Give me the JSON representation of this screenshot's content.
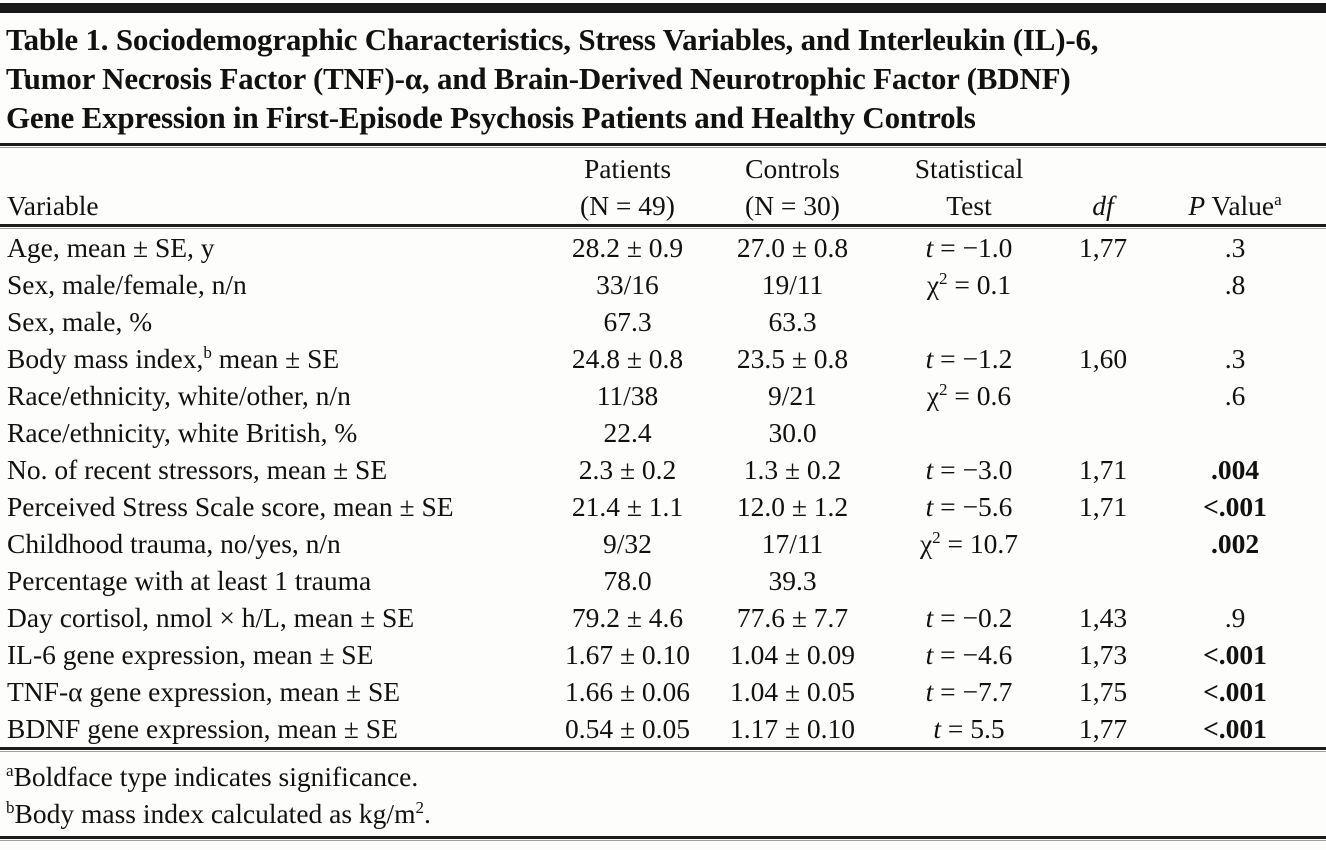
{
  "colors": {
    "ink": "#111111",
    "rule": "#1c1c1c",
    "background": "#fdfdfc"
  },
  "title_lines": [
    "Table 1. Sociodemographic Characteristics, Stress Variables, and Interleukin (IL)-6,",
    "Tumor Necrosis Factor (TNF)-α, and Brain-Derived Neurotrophic Factor (BDNF)",
    "Gene Expression in First-Episode Psychosis Patients and Healthy Controls"
  ],
  "table": {
    "header": {
      "row1": [
        "",
        "Patients",
        "Controls",
        "Statistical",
        "",
        ""
      ],
      "row2": [
        "Variable",
        "(N = 49)",
        "(N = 30)",
        "Test",
        "[i]df[/i]",
        "[i]P[/i] Value[sup]a[/sup]"
      ]
    },
    "rows": [
      {
        "variable": "Age, mean ± SE, y",
        "patients": "28.2 ± 0.9",
        "controls": "27.0 ± 0.8",
        "test": "[i]t[/i] = −1.0",
        "df": "1,77",
        "p": ".3",
        "significant": false
      },
      {
        "variable": "Sex, male/female, n/n",
        "patients": "33/16",
        "controls": "19/11",
        "test": "χ[sup]2[/sup] = 0.1",
        "df": "",
        "p": ".8",
        "significant": false
      },
      {
        "variable": "Sex, male, %",
        "patients": "67.3",
        "controls": "63.3",
        "test": "",
        "df": "",
        "p": "",
        "significant": false
      },
      {
        "variable": "Body mass index,[sup]b[/sup] mean ± SE",
        "patients": "24.8 ± 0.8",
        "controls": "23.5 ± 0.8",
        "test": "[i]t[/i] = −1.2",
        "df": "1,60",
        "p": ".3",
        "significant": false
      },
      {
        "variable": "Race/ethnicity, white/other, n/n",
        "patients": "11/38",
        "controls": "9/21",
        "test": "χ[sup]2[/sup] = 0.6",
        "df": "",
        "p": ".6",
        "significant": false
      },
      {
        "variable": "Race/ethnicity, white British, %",
        "patients": "22.4",
        "controls": "30.0",
        "test": "",
        "df": "",
        "p": "",
        "significant": false
      },
      {
        "variable": "No. of recent stressors, mean ± SE",
        "patients": "2.3 ± 0.2",
        "controls": "1.3 ± 0.2",
        "test": "[i]t[/i] = −3.0",
        "df": "1,71",
        "p": ".004",
        "significant": true
      },
      {
        "variable": "Perceived Stress Scale score, mean ± SE",
        "patients": "21.4 ± 1.1",
        "controls": "12.0 ± 1.2",
        "test": "[i]t[/i] = −5.6",
        "df": "1,71",
        "p": "<.001",
        "significant": true
      },
      {
        "variable": "Childhood trauma, no/yes, n/n",
        "patients": "9/32",
        "controls": "17/11",
        "test": "χ[sup]2[/sup] = 10.7",
        "df": "",
        "p": ".002",
        "significant": true
      },
      {
        "variable": "Percentage with at least 1 trauma",
        "patients": "78.0",
        "controls": "39.3",
        "test": "",
        "df": "",
        "p": "",
        "significant": false
      },
      {
        "variable": "Day cortisol, nmol × h/L, mean ± SE",
        "patients": "79.2 ± 4.6",
        "controls": "77.6 ± 7.7",
        "test": "[i]t[/i] = −0.2",
        "df": "1,43",
        "p": ".9",
        "significant": false
      },
      {
        "variable": "IL-6 gene expression, mean ± SE",
        "patients": "1.67 ± 0.10",
        "controls": "1.04 ± 0.09",
        "test": "[i]t[/i] = −4.6",
        "df": "1,73",
        "p": "<.001",
        "significant": true
      },
      {
        "variable": "TNF-α gene expression, mean ± SE",
        "patients": "1.66 ± 0.06",
        "controls": "1.04 ± 0.05",
        "test": "[i]t[/i] = −7.7",
        "df": "1,75",
        "p": "<.001",
        "significant": true
      },
      {
        "variable": "BDNF gene expression, mean ± SE",
        "patients": "0.54 ± 0.05",
        "controls": "1.17 ± 0.10",
        "test": "[i]t[/i] = 5.5",
        "df": "1,77",
        "p": "<.001",
        "significant": true
      }
    ]
  },
  "footnotes": [
    "[sup]a[/sup]Boldface type indicates significance.",
    "[sup]b[/sup]Body mass index calculated as kg/m[sup]2[/sup]."
  ]
}
